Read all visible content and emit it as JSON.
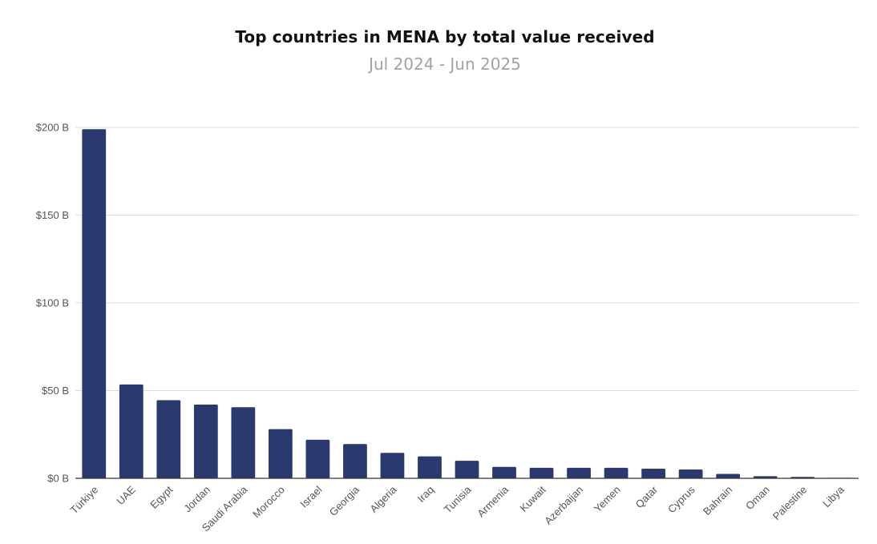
{
  "chart_data": {
    "type": "bar",
    "title": "Top countries in MENA by total value received",
    "subtitle": "Jul 2024 - Jun 2025",
    "xlabel": "",
    "ylabel": "",
    "categories": [
      "Türkiye",
      "UAE",
      "Egypt",
      "Jordan",
      "Saudi Arabia",
      "Morocco",
      "Israel",
      "Georgia",
      "Algeria",
      "Iraq",
      "Tunisia",
      "Armenia",
      "Kuwait",
      "Azerbaijan",
      "Yemen",
      "Qatar",
      "Cyprus",
      "Bahrain",
      "Oman",
      "Palestine",
      "Libya"
    ],
    "values": [
      199,
      53.5,
      44.5,
      42,
      40.5,
      28,
      22,
      19.5,
      14.5,
      12.5,
      10,
      6.5,
      6,
      6,
      6,
      5.5,
      5,
      2.5,
      1.2,
      0.8,
      0.1
    ],
    "value_unit": "B USD",
    "ylim": [
      0,
      200
    ],
    "yticks": [
      0,
      50,
      100,
      150,
      200
    ],
    "ytick_labels": [
      "$0 B",
      "$50 B",
      "$100 B",
      "$150 B",
      "$200 B"
    ],
    "grid": true,
    "legend": "none",
    "bar_color": "#2b3a6e",
    "grid_color": "#dddddd",
    "axis_color": "#333333"
  }
}
